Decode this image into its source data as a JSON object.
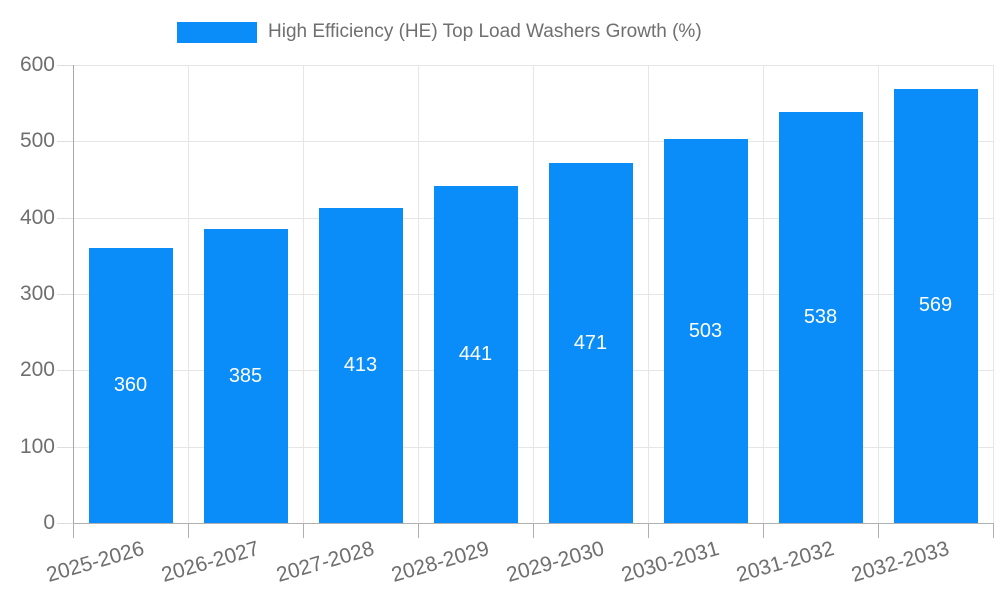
{
  "chart_data": {
    "type": "bar",
    "title": "High Efficiency (HE) Top Load Washers Growth (%)",
    "categories": [
      "2025-2026",
      "2026-2027",
      "2027-2028",
      "2028-2029",
      "2029-2030",
      "2030-2031",
      "2031-2032",
      "2032-2033"
    ],
    "values": [
      360,
      385,
      413,
      441,
      471,
      503,
      538,
      569
    ],
    "xlabel": "",
    "ylabel": "",
    "ylim": [
      0,
      600
    ],
    "yticks": [
      0,
      100,
      200,
      300,
      400,
      500,
      600
    ],
    "grid": true,
    "legend_position": "top",
    "colors": {
      "bar": "#0a8df8",
      "value_label": "#ffffff",
      "grid_line": "#e6e6e6",
      "axis_line": "#a6a6a6",
      "tick_text": "#6f6f6f",
      "background": "#ffffff"
    }
  }
}
